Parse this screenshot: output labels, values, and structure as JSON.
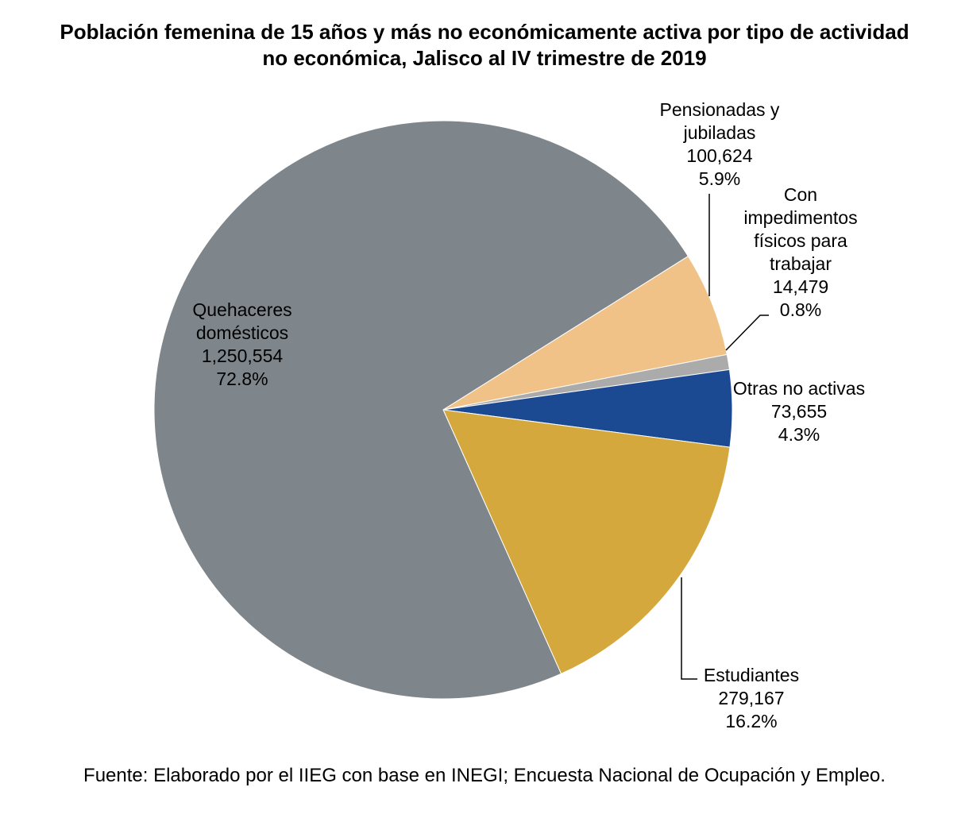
{
  "chart_data": {
    "type": "pie",
    "title_lines": [
      "Población femenina de 15 años y más no económicamente activa por tipo de actividad",
      "no económica, Jalisco al IV trimestre de 2019"
    ],
    "slices": [
      {
        "label_lines": [
          "Pensionadas y",
          "jubiladas"
        ],
        "value": 100624,
        "value_text": "100,624",
        "percent": 5.9,
        "percent_text": "5.9%",
        "color": "#F0C287"
      },
      {
        "label_lines": [
          "Con",
          "impedimentos",
          "físicos para",
          "trabajar"
        ],
        "value": 14479,
        "value_text": "14,479",
        "percent": 0.8,
        "percent_text": "0.8%",
        "color": "#ABABAB"
      },
      {
        "label_lines": [
          "Otras no activas"
        ],
        "value": 73655,
        "value_text": "73,655",
        "percent": 4.3,
        "percent_text": "4.3%",
        "color": "#1B4A93"
      },
      {
        "label_lines": [
          "Estudiantes"
        ],
        "value": 279167,
        "value_text": "279,167",
        "percent": 16.2,
        "percent_text": "16.2%",
        "color": "#D4A83D"
      },
      {
        "label_lines": [
          "Quehaceres",
          "domésticos"
        ],
        "value": 1250554,
        "value_text": "1,250,554",
        "percent": 72.8,
        "percent_text": "72.8%",
        "color": "#7F868B"
      }
    ],
    "start_category": "Pensionadas y jubiladas",
    "direction": "clockwise",
    "legend": "none"
  },
  "source": "Fuente: Elaborado por el IIEG con base en INEGI; Encuesta Nacional de Ocupación y Empleo."
}
